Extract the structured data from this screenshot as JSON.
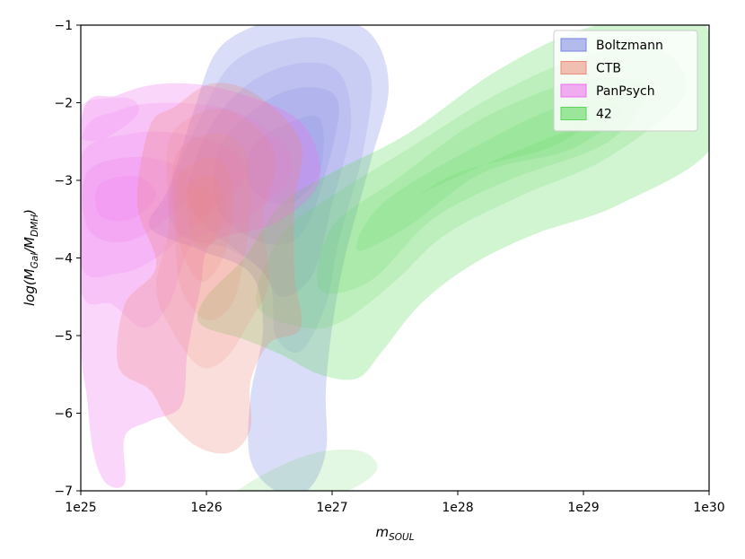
{
  "chart_data": {
    "type": "kde-contour",
    "xlabel": "m",
    "xlabel_sub": "SOUL",
    "ylabel_parts": {
      "prefix": "log(M",
      "sub1": "Gal",
      "mid": "/M",
      "sub2": "DMH",
      "suffix": ")"
    },
    "x_scale": "log",
    "x_range": [
      "1e25",
      "1e30"
    ],
    "x_ticks": [
      "1e25",
      "1e26",
      "1e27",
      "1e28",
      "1e29",
      "1e30"
    ],
    "y_range": [
      -7,
      -1
    ],
    "y_ticks": [
      "−1",
      "−2",
      "−3",
      "−4",
      "−5",
      "−6",
      "−7"
    ],
    "grid": false,
    "legend_position": "top-right",
    "series": [
      {
        "name": "Boltzmann",
        "color": "#7b84e3",
        "levels": [
          [
            [
              26.1,
              -1.3
            ],
            [
              26.5,
              -0.95
            ],
            [
              26.9,
              -0.9
            ],
            [
              27.3,
              -1.1
            ],
            [
              27.45,
              -1.8
            ],
            [
              27.3,
              -2.8
            ],
            [
              27.1,
              -4.0
            ],
            [
              27.0,
              -4.9
            ],
            [
              26.95,
              -5.7
            ],
            [
              26.95,
              -6.5
            ],
            [
              26.8,
              -7.0
            ],
            [
              26.55,
              -7.0
            ],
            [
              26.35,
              -6.6
            ],
            [
              26.35,
              -5.8
            ],
            [
              26.45,
              -4.9
            ],
            [
              26.35,
              -4.2
            ],
            [
              25.95,
              -3.9
            ],
            [
              25.55,
              -3.6
            ],
            [
              25.7,
              -3.1
            ],
            [
              25.9,
              -2.1
            ]
          ],
          [
            [
              26.2,
              -1.5
            ],
            [
              26.6,
              -1.2
            ],
            [
              27.0,
              -1.2
            ],
            [
              27.3,
              -1.6
            ],
            [
              27.25,
              -2.6
            ],
            [
              27.05,
              -3.8
            ],
            [
              26.95,
              -4.6
            ],
            [
              26.75,
              -5.2
            ],
            [
              26.55,
              -5.0
            ],
            [
              26.5,
              -4.3
            ],
            [
              26.2,
              -3.9
            ],
            [
              25.8,
              -3.7
            ],
            [
              25.7,
              -3.2
            ],
            [
              25.95,
              -2.2
            ]
          ],
          [
            [
              26.3,
              -1.8
            ],
            [
              26.7,
              -1.5
            ],
            [
              27.05,
              -1.6
            ],
            [
              27.15,
              -2.3
            ],
            [
              27.0,
              -3.3
            ],
            [
              26.85,
              -4.2
            ],
            [
              26.6,
              -4.5
            ],
            [
              26.4,
              -4.1
            ],
            [
              26.0,
              -3.6
            ],
            [
              25.85,
              -3.2
            ],
            [
              26.0,
              -2.4
            ]
          ],
          [
            [
              26.45,
              -2.0
            ],
            [
              26.8,
              -1.8
            ],
            [
              27.05,
              -2.0
            ],
            [
              26.95,
              -2.9
            ],
            [
              26.75,
              -3.7
            ],
            [
              26.45,
              -3.8
            ],
            [
              26.1,
              -3.4
            ],
            [
              26.1,
              -2.6
            ]
          ],
          [
            [
              26.6,
              -2.3
            ],
            [
              26.9,
              -2.2
            ],
            [
              26.9,
              -2.9
            ],
            [
              26.65,
              -3.3
            ],
            [
              26.35,
              -3.1
            ],
            [
              26.35,
              -2.6
            ]
          ]
        ]
      },
      {
        "name": "42",
        "color": "#5ad65a",
        "levels": [
          [
            [
              26.3,
              -4.0
            ],
            [
              26.6,
              -3.3
            ],
            [
              27.0,
              -2.9
            ],
            [
              27.6,
              -2.4
            ],
            [
              28.3,
              -1.6
            ],
            [
              29.0,
              -1.05
            ],
            [
              29.7,
              -0.9
            ],
            [
              30.0,
              -1.1
            ],
            [
              30.05,
              -2.5
            ],
            [
              29.3,
              -3.3
            ],
            [
              28.6,
              -3.7
            ],
            [
              28.1,
              -4.1
            ],
            [
              27.7,
              -4.6
            ],
            [
              27.4,
              -5.2
            ],
            [
              27.2,
              -5.55
            ],
            [
              26.9,
              -5.5
            ],
            [
              26.6,
              -5.25
            ],
            [
              26.3,
              -5.05
            ],
            [
              25.95,
              -4.85
            ],
            [
              26.0,
              -4.5
            ]
          ],
          [
            [
              26.6,
              -3.7
            ],
            [
              27.0,
              -3.2
            ],
            [
              27.6,
              -2.6
            ],
            [
              28.3,
              -1.9
            ],
            [
              29.0,
              -1.4
            ],
            [
              29.6,
              -1.3
            ],
            [
              29.8,
              -1.9
            ],
            [
              29.2,
              -2.7
            ],
            [
              28.5,
              -3.2
            ],
            [
              27.9,
              -3.7
            ],
            [
              27.5,
              -4.3
            ],
            [
              27.1,
              -4.8
            ],
            [
              26.8,
              -4.9
            ],
            [
              26.4,
              -4.6
            ]
          ],
          [
            [
              27.0,
              -3.6
            ],
            [
              27.5,
              -3.0
            ],
            [
              28.2,
              -2.2
            ],
            [
              29.0,
              -1.7
            ],
            [
              29.5,
              -1.8
            ],
            [
              29.2,
              -2.5
            ],
            [
              28.4,
              -3.0
            ],
            [
              27.8,
              -3.5
            ],
            [
              27.3,
              -4.3
            ],
            [
              26.9,
              -4.4
            ]
          ],
          [
            [
              27.4,
              -3.3
            ],
            [
              28.1,
              -2.6
            ],
            [
              28.9,
              -2.0
            ],
            [
              29.3,
              -2.1
            ],
            [
              28.9,
              -2.6
            ],
            [
              28.2,
              -2.9
            ],
            [
              27.6,
              -3.6
            ],
            [
              27.2,
              -3.9
            ]
          ],
          [
            [
              27.8,
              -3.1
            ],
            [
              28.5,
              -2.6
            ],
            [
              29.0,
              -2.3
            ],
            [
              28.7,
              -2.6
            ],
            [
              28.0,
              -2.9
            ],
            [
              27.6,
              -3.3
            ]
          ],
          [
            [
              26.2,
              -7.1
            ],
            [
              26.5,
              -6.75
            ],
            [
              26.9,
              -6.5
            ],
            [
              27.25,
              -6.5
            ],
            [
              27.35,
              -6.75
            ],
            [
              27.05,
              -7.05
            ],
            [
              26.6,
              -7.15
            ]
          ]
        ]
      },
      {
        "name": "PanPsych",
        "color": "#f06cf0",
        "levels": [
          [
            [
              25.0,
              -2.25
            ],
            [
              25.3,
              -1.9
            ],
            [
              25.7,
              -1.75
            ],
            [
              26.2,
              -1.85
            ],
            [
              26.75,
              -2.25
            ],
            [
              26.9,
              -3.0
            ],
            [
              26.55,
              -3.55
            ],
            [
              26.05,
              -3.8
            ],
            [
              25.95,
              -4.4
            ],
            [
              25.85,
              -5.2
            ],
            [
              25.8,
              -5.9
            ],
            [
              25.55,
              -6.1
            ],
            [
              25.35,
              -6.3
            ],
            [
              25.35,
              -6.9
            ],
            [
              25.2,
              -6.9
            ],
            [
              25.1,
              -6.5
            ],
            [
              25.05,
              -5.8
            ],
            [
              25.0,
              -5.0
            ]
          ],
          [
            [
              25.0,
              -2.5
            ],
            [
              25.3,
              -2.1
            ],
            [
              25.7,
              -2.0
            ],
            [
              26.2,
              -2.1
            ],
            [
              26.6,
              -2.5
            ],
            [
              26.65,
              -3.0
            ],
            [
              26.3,
              -3.5
            ],
            [
              25.9,
              -3.8
            ],
            [
              25.7,
              -4.6
            ],
            [
              25.5,
              -4.9
            ],
            [
              25.25,
              -4.6
            ],
            [
              25.0,
              -4.4
            ]
          ],
          [
            [
              25.0,
              -2.7
            ],
            [
              25.4,
              -2.4
            ],
            [
              25.8,
              -2.4
            ],
            [
              26.2,
              -2.6
            ],
            [
              26.3,
              -3.0
            ],
            [
              25.95,
              -3.5
            ],
            [
              25.6,
              -4.0
            ],
            [
              25.3,
              -4.2
            ],
            [
              25.0,
              -4.1
            ]
          ],
          [
            [
              25.05,
              -2.9
            ],
            [
              25.4,
              -2.7
            ],
            [
              25.75,
              -2.8
            ],
            [
              25.9,
              -3.1
            ],
            [
              25.6,
              -3.6
            ],
            [
              25.3,
              -3.8
            ],
            [
              25.05,
              -3.6
            ]
          ],
          [
            [
              25.15,
              -3.05
            ],
            [
              25.45,
              -2.95
            ],
            [
              25.6,
              -3.2
            ],
            [
              25.4,
              -3.5
            ],
            [
              25.15,
              -3.45
            ]
          ],
          [
            [
              25.0,
              -2.05
            ],
            [
              25.15,
              -1.95
            ],
            [
              25.4,
              -1.95
            ],
            [
              25.45,
              -2.15
            ],
            [
              25.2,
              -2.45
            ],
            [
              25.0,
              -2.45
            ]
          ]
        ]
      },
      {
        "name": "CTB",
        "color": "#ee8a7c",
        "levels": [
          [
            [
              25.55,
              -2.3
            ],
            [
              25.75,
              -2.05
            ],
            [
              26.05,
              -1.75
            ],
            [
              26.4,
              -1.9
            ],
            [
              26.75,
              -2.5
            ],
            [
              26.7,
              -3.3
            ],
            [
              26.7,
              -4.2
            ],
            [
              26.75,
              -4.9
            ],
            [
              26.5,
              -5.1
            ],
            [
              26.35,
              -5.6
            ],
            [
              26.35,
              -6.2
            ],
            [
              26.2,
              -6.5
            ],
            [
              25.95,
              -6.45
            ],
            [
              25.7,
              -6.1
            ],
            [
              25.55,
              -5.7
            ],
            [
              25.3,
              -5.4
            ],
            [
              25.35,
              -4.6
            ],
            [
              25.6,
              -4.1
            ],
            [
              25.45,
              -3.3
            ]
          ],
          [
            [
              25.7,
              -2.5
            ],
            [
              26.0,
              -2.1
            ],
            [
              26.3,
              -2.2
            ],
            [
              26.55,
              -2.7
            ],
            [
              26.45,
              -3.5
            ],
            [
              26.5,
              -4.3
            ],
            [
              26.35,
              -4.8
            ],
            [
              26.15,
              -5.3
            ],
            [
              25.95,
              -5.4
            ],
            [
              25.75,
              -5.0
            ],
            [
              25.6,
              -4.4
            ],
            [
              25.7,
              -3.6
            ]
          ],
          [
            [
              25.75,
              -2.7
            ],
            [
              26.05,
              -2.4
            ],
            [
              26.3,
              -2.6
            ],
            [
              26.35,
              -3.3
            ],
            [
              26.3,
              -4.0
            ],
            [
              26.2,
              -4.6
            ],
            [
              26.0,
              -4.8
            ],
            [
              25.8,
              -4.4
            ],
            [
              25.75,
              -3.7
            ]
          ],
          [
            [
              25.8,
              -2.9
            ],
            [
              26.05,
              -2.7
            ],
            [
              26.2,
              -3.0
            ],
            [
              26.2,
              -3.6
            ],
            [
              26.1,
              -4.1
            ],
            [
              25.95,
              -4.3
            ],
            [
              25.8,
              -3.9
            ],
            [
              25.75,
              -3.3
            ]
          ],
          [
            [
              25.85,
              -3.05
            ],
            [
              26.05,
              -2.95
            ],
            [
              26.15,
              -3.3
            ],
            [
              26.05,
              -3.8
            ],
            [
              25.9,
              -3.8
            ],
            [
              25.85,
              -3.4
            ]
          ],
          [
            [
              25.9,
              -3.15
            ],
            [
              26.0,
              -3.1
            ],
            [
              26.05,
              -3.4
            ],
            [
              25.95,
              -3.6
            ],
            [
              25.9,
              -3.4
            ]
          ]
        ]
      }
    ]
  }
}
